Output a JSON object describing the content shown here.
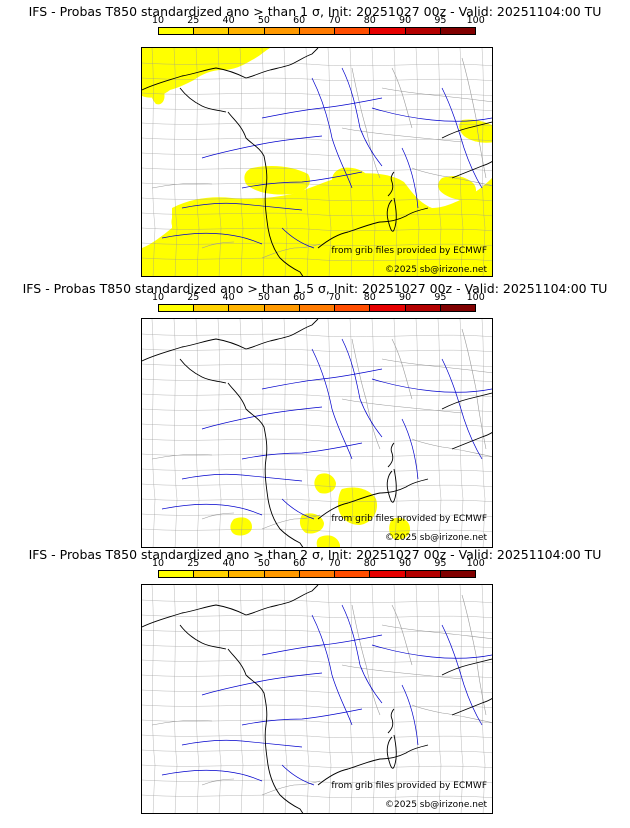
{
  "colorbar": {
    "ticks": [
      "10",
      "25",
      "40",
      "50",
      "60",
      "70",
      "80",
      "90",
      "95",
      "100"
    ],
    "colors": [
      "#ffff00",
      "#ffd200",
      "#ffb300",
      "#ff9900",
      "#ff7a00",
      "#ff4d00",
      "#e60000",
      "#b30000",
      "#800000"
    ]
  },
  "colors": {
    "probability_fill": "#ffff00",
    "coast": "#000000",
    "rivers": "#0000cc",
    "borders": "#9a9a9a"
  },
  "panels": [
    {
      "title": "IFS - Probas T850  standardized ano > than 1 σ, Init: 20251027 00z - Valid: 20251104:00 TU",
      "credit_source": "from grib files provided by ECMWF",
      "credit_copyright": "©2025 sb@irizone.net"
    },
    {
      "title": "IFS - Probas T850  standardized ano > than 1.5 σ, Init: 20251027 00z - Valid: 20251104:00 TU",
      "credit_source": "from grib files provided by ECMWF",
      "credit_copyright": "©2025 sb@irizone.net"
    },
    {
      "title": "IFS - Probas T850  standardized ano > than 2 σ, Init: 20251027 00z - Valid: 20251104:00 TU",
      "credit_source": "from grib files provided by ECMWF",
      "credit_copyright": "©2025 sb@irizone.net"
    }
  ]
}
